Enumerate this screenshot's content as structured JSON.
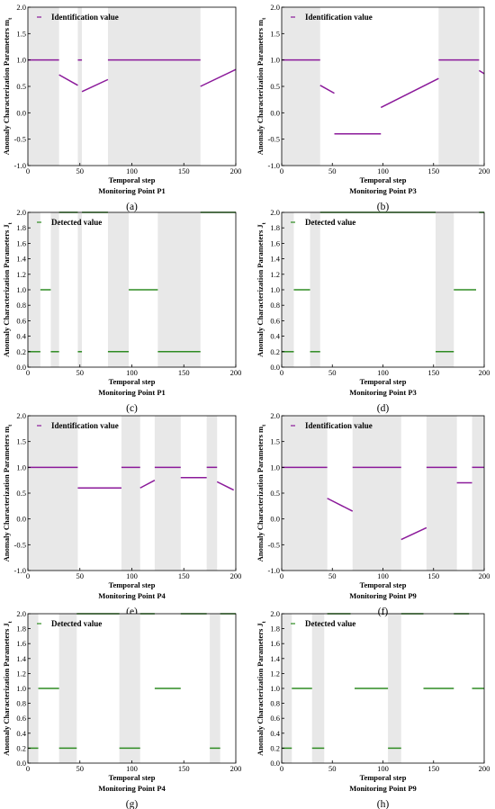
{
  "chart_data": [
    {
      "id": "a",
      "type": "line",
      "caption": "(a)",
      "subtitle": "Monitoring Point P1",
      "xlabel": "Temporal step",
      "ylabel": "Anomaly Characterization Parameters m",
      "ylabel_sub": "t",
      "xlim": [
        0,
        200
      ],
      "ylim": [
        -1.0,
        2.0
      ],
      "xticks": [
        "0",
        "50",
        "100",
        "150",
        "200"
      ],
      "yticks": [
        "-1.0",
        "-0.5",
        "0.0",
        "0.5",
        "1.0",
        "1.5",
        "2.0"
      ],
      "legend": "Identification value",
      "line_color": "#8b1a9a",
      "shaded": [
        [
          0,
          30
        ],
        [
          48,
          52
        ],
        [
          77,
          166
        ]
      ],
      "segments": [
        [
          [
            0,
            1.0
          ],
          [
            30,
            1.0
          ]
        ],
        [
          [
            30,
            0.72
          ],
          [
            48,
            0.52
          ]
        ],
        [
          [
            48,
            1.0
          ],
          [
            52,
            1.0
          ]
        ],
        [
          [
            52,
            0.4
          ],
          [
            77,
            0.63
          ]
        ],
        [
          [
            77,
            1.0
          ],
          [
            166,
            1.0
          ]
        ],
        [
          [
            166,
            0.5
          ],
          [
            200,
            0.82
          ]
        ]
      ]
    },
    {
      "id": "b",
      "type": "line",
      "caption": "(b)",
      "subtitle": "Monitoring Point P3",
      "xlabel": "Temporal step",
      "ylabel": "Anomaly Characterization Parameters m",
      "ylabel_sub": "t",
      "xlim": [
        0,
        200
      ],
      "ylim": [
        -1.0,
        2.0
      ],
      "xticks": [
        "0",
        "50",
        "100",
        "150",
        "200"
      ],
      "yticks": [
        "-1.0",
        "-0.5",
        "0.0",
        "0.5",
        "1.0",
        "1.5",
        "2.0"
      ],
      "legend": "Identification value",
      "line_color": "#8b1a9a",
      "shaded": [
        [
          0,
          38
        ],
        [
          155,
          195
        ]
      ],
      "segments": [
        [
          [
            0,
            1.0
          ],
          [
            38,
            1.0
          ]
        ],
        [
          [
            38,
            0.52
          ],
          [
            52,
            0.37
          ]
        ],
        [
          [
            52,
            -0.4
          ],
          [
            98,
            -0.4
          ]
        ],
        [
          [
            98,
            0.1
          ],
          [
            155,
            0.65
          ]
        ],
        [
          [
            155,
            1.0
          ],
          [
            195,
            1.0
          ]
        ],
        [
          [
            195,
            0.8
          ],
          [
            200,
            0.74
          ]
        ]
      ]
    },
    {
      "id": "c",
      "type": "step",
      "caption": "(c)",
      "subtitle": "Monitoring Point P1",
      "xlabel": "Temporal step",
      "ylabel": "Anomaly Characterization Parameters J",
      "ylabel_sub": "t",
      "xlim": [
        0,
        200
      ],
      "ylim": [
        0.0,
        2.0
      ],
      "xticks": [
        "0",
        "50",
        "100",
        "150",
        "200"
      ],
      "yticks": [
        "0.0",
        "0.2",
        "0.4",
        "0.6",
        "0.8",
        "1.0",
        "1.2",
        "1.4",
        "1.6",
        "1.8",
        "2.0"
      ],
      "legend": "Detected value",
      "line_color": "#2e8b22",
      "shaded": [
        [
          0,
          12
        ],
        [
          22,
          30
        ],
        [
          48,
          52
        ],
        [
          77,
          97
        ],
        [
          125,
          166
        ]
      ],
      "segments": [
        [
          [
            0,
            0.2
          ],
          [
            12,
            0.2
          ]
        ],
        [
          [
            12,
            1.0
          ],
          [
            22,
            1.0
          ]
        ],
        [
          [
            22,
            0.2
          ],
          [
            30,
            0.2
          ]
        ],
        [
          [
            30,
            2.0
          ],
          [
            48,
            2.0
          ]
        ],
        [
          [
            48,
            0.2
          ],
          [
            52,
            0.2
          ]
        ],
        [
          [
            52,
            2.0
          ],
          [
            77,
            2.0
          ]
        ],
        [
          [
            77,
            0.2
          ],
          [
            97,
            0.2
          ]
        ],
        [
          [
            97,
            1.0
          ],
          [
            125,
            1.0
          ]
        ],
        [
          [
            125,
            0.2
          ],
          [
            166,
            0.2
          ]
        ],
        [
          [
            166,
            2.0
          ],
          [
            200,
            2.0
          ]
        ]
      ]
    },
    {
      "id": "d",
      "type": "step",
      "caption": "(d)",
      "subtitle": "Monitoring Point P3",
      "xlabel": "Temporal step",
      "ylabel": "Anomaly Characterization Parameters J",
      "ylabel_sub": "t",
      "xlim": [
        0,
        200
      ],
      "ylim": [
        0.0,
        2.0
      ],
      "xticks": [
        "0",
        "50",
        "100",
        "150",
        "200"
      ],
      "yticks": [
        "0.0",
        "0.2",
        "0.4",
        "0.6",
        "0.8",
        "1.0",
        "1.2",
        "1.4",
        "1.6",
        "1.8",
        "2.0"
      ],
      "legend": "Detected value",
      "line_color": "#2e8b22",
      "shaded": [
        [
          0,
          12
        ],
        [
          28,
          38
        ],
        [
          152,
          170
        ]
      ],
      "segments": [
        [
          [
            0,
            0.2
          ],
          [
            12,
            0.2
          ]
        ],
        [
          [
            12,
            1.0
          ],
          [
            28,
            1.0
          ]
        ],
        [
          [
            28,
            0.2
          ],
          [
            38,
            0.2
          ]
        ],
        [
          [
            38,
            2.0
          ],
          [
            152,
            2.0
          ]
        ],
        [
          [
            152,
            0.2
          ],
          [
            170,
            0.2
          ]
        ],
        [
          [
            170,
            1.0
          ],
          [
            192,
            1.0
          ]
        ],
        [
          [
            195,
            2.0
          ],
          [
            200,
            2.0
          ]
        ]
      ]
    },
    {
      "id": "e",
      "type": "line",
      "caption": "(e)",
      "subtitle": "Monitoring Point P4",
      "xlabel": "Temporal step",
      "ylabel": "Anomaly Characterization Parameters m",
      "ylabel_sub": "t",
      "xlim": [
        0,
        200
      ],
      "ylim": [
        -1.0,
        2.0
      ],
      "xticks": [
        "0",
        "50",
        "100",
        "150",
        "200"
      ],
      "yticks": [
        "-1.0",
        "-0.5",
        "0.0",
        "0.5",
        "1.0",
        "1.5",
        "2.0"
      ],
      "legend": "Identification value",
      "line_color": "#8b1a9a",
      "shaded": [
        [
          0,
          48
        ],
        [
          90,
          108
        ],
        [
          122,
          147
        ],
        [
          172,
          182
        ]
      ],
      "segments": [
        [
          [
            0,
            1.0
          ],
          [
            48,
            1.0
          ]
        ],
        [
          [
            48,
            0.6
          ],
          [
            90,
            0.6
          ]
        ],
        [
          [
            90,
            1.0
          ],
          [
            108,
            1.0
          ]
        ],
        [
          [
            108,
            0.6
          ],
          [
            122,
            0.75
          ]
        ],
        [
          [
            122,
            1.0
          ],
          [
            147,
            1.0
          ]
        ],
        [
          [
            147,
            0.8
          ],
          [
            172,
            0.8
          ]
        ],
        [
          [
            172,
            1.0
          ],
          [
            182,
            1.0
          ]
        ],
        [
          [
            182,
            0.72
          ],
          [
            198,
            0.56
          ]
        ]
      ]
    },
    {
      "id": "f",
      "type": "line",
      "caption": "(f)",
      "subtitle": "Monitoring Point P9",
      "xlabel": "Temporal step",
      "ylabel": "Anomaly Characterization Parameters m",
      "ylabel_sub": "t",
      "xlim": [
        0,
        200
      ],
      "ylim": [
        -1.0,
        2.0
      ],
      "xticks": [
        "0",
        "50",
        "100",
        "150",
        "200"
      ],
      "yticks": [
        "-1.0",
        "-0.5",
        "0.0",
        "0.5",
        "1.0",
        "1.5",
        "2.0"
      ],
      "legend": "Identification value",
      "line_color": "#8b1a9a",
      "shaded": [
        [
          0,
          45
        ],
        [
          70,
          118
        ],
        [
          143,
          173
        ],
        [
          188,
          200
        ]
      ],
      "segments": [
        [
          [
            0,
            1.0
          ],
          [
            45,
            1.0
          ]
        ],
        [
          [
            45,
            0.4
          ],
          [
            70,
            0.15
          ]
        ],
        [
          [
            70,
            1.0
          ],
          [
            118,
            1.0
          ]
        ],
        [
          [
            118,
            -0.4
          ],
          [
            143,
            -0.17
          ]
        ],
        [
          [
            143,
            1.0
          ],
          [
            173,
            1.0
          ]
        ],
        [
          [
            173,
            0.7
          ],
          [
            188,
            0.7
          ]
        ],
        [
          [
            188,
            1.0
          ],
          [
            200,
            1.0
          ]
        ]
      ]
    },
    {
      "id": "g",
      "type": "step",
      "caption": "(g)",
      "subtitle": "Monitoring Point P4",
      "xlabel": "Temporal step",
      "ylabel": "Anomaly Characterization Parameters J",
      "ylabel_sub": "t",
      "xlim": [
        0,
        200
      ],
      "ylim": [
        0.0,
        2.0
      ],
      "xticks": [
        "0",
        "50",
        "100",
        "150",
        "200"
      ],
      "yticks": [
        "0.0",
        "0.2",
        "0.4",
        "0.6",
        "0.8",
        "1.0",
        "1.2",
        "1.4",
        "1.6",
        "1.8",
        "2.0"
      ],
      "legend": "Detected value",
      "line_color": "#2e8b22",
      "shaded": [
        [
          0,
          10
        ],
        [
          30,
          47
        ],
        [
          88,
          108
        ],
        [
          175,
          185
        ]
      ],
      "segments": [
        [
          [
            0,
            0.2
          ],
          [
            10,
            0.2
          ]
        ],
        [
          [
            10,
            1.0
          ],
          [
            30,
            1.0
          ]
        ],
        [
          [
            30,
            0.2
          ],
          [
            47,
            0.2
          ]
        ],
        [
          [
            47,
            2.0
          ],
          [
            88,
            2.0
          ]
        ],
        [
          [
            88,
            0.2
          ],
          [
            108,
            0.2
          ]
        ],
        [
          [
            108,
            2.0
          ],
          [
            122,
            2.0
          ]
        ],
        [
          [
            122,
            1.0
          ],
          [
            147,
            1.0
          ]
        ],
        [
          [
            147,
            2.0
          ],
          [
            172,
            2.0
          ]
        ],
        [
          [
            175,
            0.2
          ],
          [
            185,
            0.2
          ]
        ],
        [
          [
            185,
            2.0
          ],
          [
            200,
            2.0
          ]
        ]
      ]
    },
    {
      "id": "h",
      "type": "step",
      "caption": "(h)",
      "subtitle": "Monitoring Point P9",
      "xlabel": "Temporal step",
      "ylabel": "Anomaly Characterization Parameters J",
      "ylabel_sub": "t",
      "xlim": [
        0,
        200
      ],
      "ylim": [
        0.0,
        2.0
      ],
      "xticks": [
        "0",
        "50",
        "100",
        "150",
        "200"
      ],
      "yticks": [
        "0.0",
        "0.2",
        "0.4",
        "0.6",
        "0.8",
        "1.0",
        "1.2",
        "1.4",
        "1.6",
        "1.8",
        "2.0"
      ],
      "legend": "Detected value",
      "line_color": "#2e8b22",
      "shaded": [
        [
          0,
          10
        ],
        [
          30,
          42
        ],
        [
          105,
          118
        ]
      ],
      "segments": [
        [
          [
            0,
            0.2
          ],
          [
            10,
            0.2
          ]
        ],
        [
          [
            10,
            1.0
          ],
          [
            30,
            1.0
          ]
        ],
        [
          [
            30,
            0.2
          ],
          [
            42,
            0.2
          ]
        ],
        [
          [
            45,
            2.0
          ],
          [
            68,
            2.0
          ]
        ],
        [
          [
            72,
            1.0
          ],
          [
            105,
            1.0
          ]
        ],
        [
          [
            105,
            0.2
          ],
          [
            118,
            0.2
          ]
        ],
        [
          [
            118,
            2.0
          ],
          [
            140,
            2.0
          ]
        ],
        [
          [
            140,
            1.0
          ],
          [
            170,
            1.0
          ]
        ],
        [
          [
            170,
            2.0
          ],
          [
            185,
            2.0
          ]
        ],
        [
          [
            188,
            1.0
          ],
          [
            200,
            1.0
          ]
        ]
      ]
    }
  ]
}
